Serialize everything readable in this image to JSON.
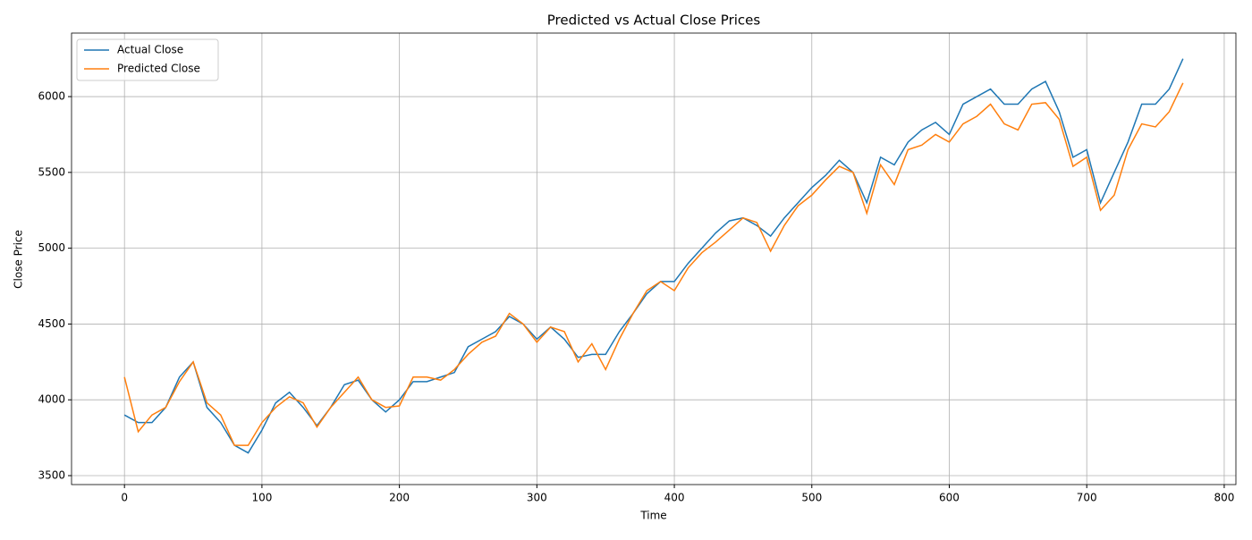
{
  "chart_data": {
    "type": "line",
    "title": "Predicted vs Actual Close Prices",
    "xlabel": "Time",
    "ylabel": "Close Price",
    "x": [
      0,
      10,
      20,
      30,
      40,
      50,
      60,
      70,
      80,
      90,
      100,
      110,
      120,
      130,
      140,
      150,
      160,
      170,
      180,
      190,
      200,
      210,
      220,
      230,
      240,
      250,
      260,
      270,
      280,
      290,
      300,
      310,
      320,
      330,
      340,
      350,
      360,
      370,
      380,
      390,
      400,
      410,
      420,
      430,
      440,
      450,
      460,
      470,
      480,
      490,
      500,
      510,
      520,
      530,
      540,
      550,
      560,
      570,
      580,
      590,
      600,
      610,
      620,
      630,
      640,
      650,
      660,
      670,
      680,
      690,
      700,
      710,
      720,
      730,
      740,
      750,
      760,
      770
    ],
    "series": [
      {
        "name": "Actual Close",
        "color": "#1f77b4",
        "values": [
          3900,
          3850,
          3850,
          3950,
          4150,
          4250,
          3950,
          3850,
          3700,
          3650,
          3800,
          3980,
          4050,
          3950,
          3830,
          3950,
          4100,
          4130,
          4000,
          3920,
          4000,
          4120,
          4120,
          4150,
          4180,
          4350,
          4400,
          4450,
          4550,
          4500,
          4400,
          4480,
          4400,
          4280,
          4300,
          4300,
          4450,
          4570,
          4700,
          4780,
          4780,
          4900,
          5000,
          5100,
          5180,
          5200,
          5150,
          5080,
          5200,
          5300,
          5400,
          5480,
          5580,
          5500,
          5300,
          5600,
          5550,
          5700,
          5780,
          5830,
          5750,
          5950,
          6000,
          6050,
          5950,
          5950,
          6050,
          6100,
          5900,
          5600,
          5650,
          5300,
          5500,
          5700,
          5950,
          5950,
          6050,
          6250
        ]
      },
      {
        "name": "Predicted Close",
        "color": "#ff7f0e",
        "values": [
          4150,
          3790,
          3900,
          3950,
          4120,
          4250,
          3980,
          3900,
          3700,
          3700,
          3850,
          3950,
          4020,
          3980,
          3820,
          3950,
          4050,
          4150,
          4000,
          3950,
          3960,
          4150,
          4150,
          4130,
          4200,
          4300,
          4380,
          4420,
          4570,
          4500,
          4380,
          4480,
          4450,
          4250,
          4370,
          4200,
          4400,
          4570,
          4720,
          4780,
          4720,
          4870,
          4970,
          5040,
          5120,
          5200,
          5170,
          4980,
          5150,
          5280,
          5350,
          5450,
          5540,
          5500,
          5230,
          5550,
          5420,
          5650,
          5680,
          5750,
          5700,
          5820,
          5870,
          5950,
          5820,
          5780,
          5950,
          5960,
          5850,
          5540,
          5600,
          5250,
          5350,
          5650,
          5820,
          5800,
          5900,
          6090
        ]
      }
    ],
    "xlim": [
      -38.5,
      808.5
    ],
    "xticks": [
      0,
      100,
      200,
      300,
      400,
      500,
      600,
      700,
      800
    ],
    "ylim": [
      3441,
      6419
    ],
    "yticks": [
      3500,
      4000,
      4500,
      5000,
      5500,
      6000
    ],
    "grid": true,
    "legend": "upper left"
  }
}
